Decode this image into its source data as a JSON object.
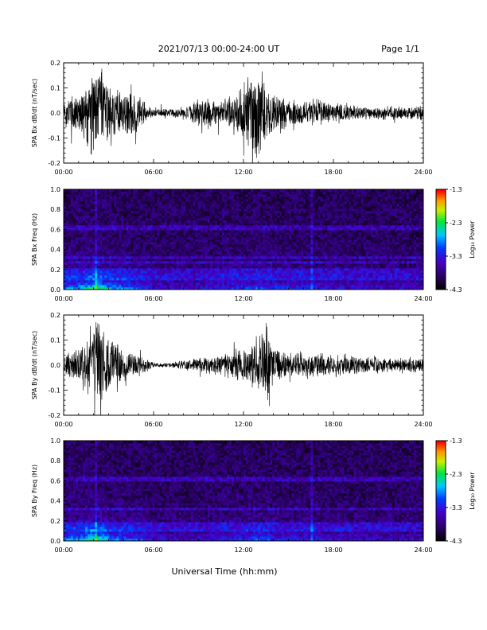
{
  "header": {
    "title": "2021/07/13  00:00-24:00 UT",
    "page_label": "Page 1/1"
  },
  "footer": {
    "xlabel": "Universal Time (hh:mm)"
  },
  "colors": {
    "trace": "#000000",
    "axis": "#000000",
    "background": "#ffffff"
  },
  "chart_data": [
    {
      "type": "line",
      "id": "bx-waveform",
      "ylabel": "SPA Bx dB/dt (nT/sec)",
      "ylim": [
        -0.2,
        0.2
      ],
      "yticks": [
        -0.2,
        -0.1,
        0.0,
        0.1,
        0.2
      ],
      "ytick_labels": [
        "-0.2",
        "-0.1",
        "0.0",
        "0.1",
        "0.2"
      ],
      "xlim": [
        0,
        24
      ],
      "xticks": [
        0,
        6,
        12,
        18,
        24
      ],
      "xtick_labels": [
        "00:00",
        "06:00",
        "12:00",
        "18:00",
        "24:00"
      ],
      "envelope": {
        "x": [
          0,
          1,
          1.5,
          2,
          2.5,
          3,
          3.5,
          4,
          4.5,
          5,
          5.5,
          6,
          7,
          8,
          9,
          9.5,
          10,
          10.5,
          11,
          11.5,
          12,
          12.5,
          13,
          13.5,
          14,
          15,
          16,
          17,
          18,
          20,
          22,
          24
        ],
        "amplitude": [
          0.06,
          0.1,
          0.14,
          0.2,
          0.2,
          0.13,
          0.1,
          0.1,
          0.11,
          0.07,
          0.04,
          0.02,
          0.02,
          0.02,
          0.06,
          0.07,
          0.06,
          0.05,
          0.07,
          0.1,
          0.15,
          0.2,
          0.2,
          0.12,
          0.08,
          0.06,
          0.06,
          0.06,
          0.04,
          0.03,
          0.03,
          0.03
        ]
      }
    },
    {
      "type": "heatmap",
      "id": "bx-spectrogram",
      "ylabel": "SPA Bx Freq (Hz)",
      "ylim": [
        0.0,
        1.0
      ],
      "yticks": [
        0.0,
        0.2,
        0.4,
        0.6,
        0.8,
        1.0
      ],
      "ytick_labels": [
        "0.0",
        "0.2",
        "0.4",
        "0.6",
        "0.8",
        "1.0"
      ],
      "xlim": [
        0,
        24
      ],
      "xticks": [
        0,
        6,
        12,
        18,
        24
      ],
      "xtick_labels": [
        "00:00",
        "06:00",
        "12:00",
        "18:00",
        "24:00"
      ],
      "colorbar": {
        "label": "Log₁₀ Power",
        "range": [
          -4.3,
          -1.3
        ],
        "ticks": [
          -1.3,
          -2.3,
          -3.3,
          -4.3
        ],
        "tick_labels": [
          "-1.3",
          "-2.3",
          "-3.3",
          "-4.3"
        ]
      },
      "activity": {
        "x": [
          0,
          1,
          2,
          2.5,
          3,
          4,
          5,
          6,
          8,
          10,
          12,
          13,
          14,
          16,
          18,
          20,
          24
        ],
        "level": [
          0.55,
          0.6,
          0.85,
          0.8,
          0.6,
          0.55,
          0.45,
          0.3,
          0.25,
          0.3,
          0.4,
          0.45,
          0.4,
          0.35,
          0.3,
          0.25,
          0.25
        ]
      },
      "line_features_hz": [
        0.1,
        0.13,
        0.16,
        0.19,
        0.21,
        0.27,
        0.33,
        0.6,
        0.62
      ]
    },
    {
      "type": "line",
      "id": "by-waveform",
      "ylabel": "SPA By dB/dt (nT/sec)",
      "ylim": [
        -0.2,
        0.2
      ],
      "yticks": [
        -0.2,
        -0.1,
        0.0,
        0.1,
        0.2
      ],
      "ytick_labels": [
        "-0.2",
        "-0.1",
        "0.0",
        "0.1",
        "0.2"
      ],
      "xlim": [
        0,
        24
      ],
      "xticks": [
        0,
        6,
        12,
        18,
        24
      ],
      "xtick_labels": [
        "00:00",
        "06:00",
        "12:00",
        "18:00",
        "24:00"
      ],
      "envelope": {
        "x": [
          0,
          1,
          1.5,
          2,
          2.5,
          3,
          3.5,
          4,
          4.5,
          5,
          5.5,
          6,
          7,
          8,
          9,
          10,
          11,
          11.5,
          12,
          12.5,
          13,
          13.5,
          14,
          15,
          16,
          18,
          20,
          22,
          24
        ],
        "amplitude": [
          0.05,
          0.07,
          0.13,
          0.2,
          0.18,
          0.13,
          0.11,
          0.07,
          0.06,
          0.05,
          0.03,
          0.01,
          0.01,
          0.02,
          0.03,
          0.04,
          0.05,
          0.07,
          0.08,
          0.09,
          0.12,
          0.19,
          0.08,
          0.06,
          0.05,
          0.05,
          0.04,
          0.03,
          0.03
        ]
      }
    },
    {
      "type": "heatmap",
      "id": "by-spectrogram",
      "ylabel": "SPA By Freq (Hz)",
      "ylim": [
        0.0,
        1.0
      ],
      "yticks": [
        0.0,
        0.2,
        0.4,
        0.6,
        0.8,
        1.0
      ],
      "ytick_labels": [
        "0.0",
        "0.2",
        "0.4",
        "0.6",
        "0.8",
        "1.0"
      ],
      "xlim": [
        0,
        24
      ],
      "xticks": [
        0,
        6,
        12,
        18,
        24
      ],
      "xtick_labels": [
        "00:00",
        "06:00",
        "12:00",
        "18:00",
        "24:00"
      ],
      "colorbar": {
        "label": "Log₁₀ Power",
        "range": [
          -4.3,
          -1.3
        ],
        "ticks": [
          -1.3,
          -2.3,
          -3.3,
          -4.3
        ],
        "tick_labels": [
          "-1.3",
          "-2.3",
          "-3.3",
          "-4.3"
        ]
      },
      "activity": {
        "x": [
          0,
          1,
          2,
          2.5,
          3,
          4,
          5,
          6,
          8,
          10,
          12,
          13,
          14,
          16,
          18,
          20,
          24
        ],
        "level": [
          0.55,
          0.6,
          0.85,
          0.8,
          0.6,
          0.5,
          0.45,
          0.3,
          0.25,
          0.3,
          0.4,
          0.5,
          0.4,
          0.35,
          0.3,
          0.25,
          0.25
        ]
      },
      "line_features_hz": [
        0.1,
        0.13,
        0.16,
        0.19,
        0.33,
        0.6,
        0.62
      ]
    }
  ]
}
